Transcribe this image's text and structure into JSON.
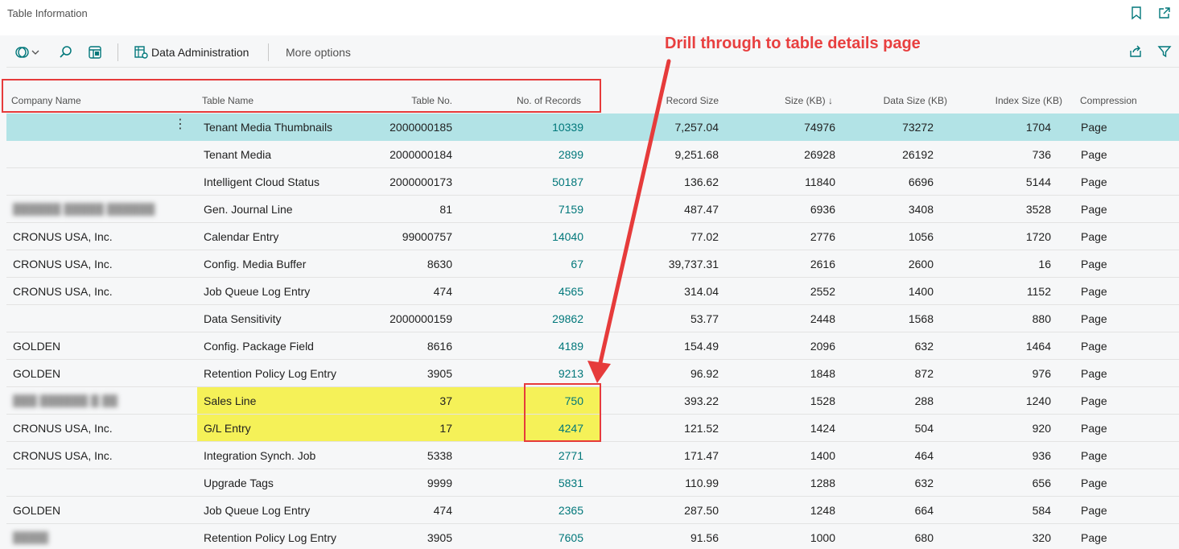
{
  "window": {
    "title": "Table Information"
  },
  "toolbar": {
    "data_admin_label": "Data Administration",
    "more_options_label": "More options"
  },
  "columns": {
    "company": "Company Name",
    "table_name": "Table Name",
    "table_no": "Table No.",
    "records": "No. of Records",
    "record_size": "Record Size",
    "size_kb": "Size (KB)",
    "sort_indicator": "↓",
    "data_size": "Data Size (KB)",
    "index_size": "Index Size (KB)",
    "compression": "Compression"
  },
  "rows": [
    {
      "company": "",
      "table_name": "Tenant Media Thumbnails",
      "table_no": "2000000185",
      "records": "10339",
      "record_size": "7,257.04",
      "size_kb": "74976",
      "data_size": "73272",
      "index_size": "1704",
      "compression": "Page"
    },
    {
      "company": "",
      "table_name": "Tenant Media",
      "table_no": "2000000184",
      "records": "2899",
      "record_size": "9,251.68",
      "size_kb": "26928",
      "data_size": "26192",
      "index_size": "736",
      "compression": "Page"
    },
    {
      "company": "",
      "table_name": "Intelligent Cloud Status",
      "table_no": "2000000173",
      "records": "50187",
      "record_size": "136.62",
      "size_kb": "11840",
      "data_size": "6696",
      "index_size": "5144",
      "compression": "Page"
    },
    {
      "company": "",
      "table_name": "Gen. Journal Line",
      "table_no": "81",
      "records": "7159",
      "record_size": "487.47",
      "size_kb": "6936",
      "data_size": "3408",
      "index_size": "3528",
      "compression": "Page"
    },
    {
      "company": "CRONUS USA, Inc.",
      "table_name": "Calendar Entry",
      "table_no": "99000757",
      "records": "14040",
      "record_size": "77.02",
      "size_kb": "2776",
      "data_size": "1056",
      "index_size": "1720",
      "compression": "Page"
    },
    {
      "company": "CRONUS USA, Inc.",
      "table_name": "Config. Media Buffer",
      "table_no": "8630",
      "records": "67",
      "record_size": "39,737.31",
      "size_kb": "2616",
      "data_size": "2600",
      "index_size": "16",
      "compression": "Page"
    },
    {
      "company": "CRONUS USA, Inc.",
      "table_name": "Job Queue Log Entry",
      "table_no": "474",
      "records": "4565",
      "record_size": "314.04",
      "size_kb": "2552",
      "data_size": "1400",
      "index_size": "1152",
      "compression": "Page"
    },
    {
      "company": "",
      "table_name": "Data Sensitivity",
      "table_no": "2000000159",
      "records": "29862",
      "record_size": "53.77",
      "size_kb": "2448",
      "data_size": "1568",
      "index_size": "880",
      "compression": "Page"
    },
    {
      "company": "GOLDEN",
      "table_name": "Config. Package Field",
      "table_no": "8616",
      "records": "4189",
      "record_size": "154.49",
      "size_kb": "2096",
      "data_size": "632",
      "index_size": "1464",
      "compression": "Page"
    },
    {
      "company": "GOLDEN",
      "table_name": "Retention Policy Log Entry",
      "table_no": "3905",
      "records": "9213",
      "record_size": "96.92",
      "size_kb": "1848",
      "data_size": "872",
      "index_size": "976",
      "compression": "Page"
    },
    {
      "company": "",
      "table_name": "Sales Line",
      "table_no": "37",
      "records": "750",
      "record_size": "393.22",
      "size_kb": "1528",
      "data_size": "288",
      "index_size": "1240",
      "compression": "Page"
    },
    {
      "company": "CRONUS USA, Inc.",
      "table_name": "G/L Entry",
      "table_no": "17",
      "records": "4247",
      "record_size": "121.52",
      "size_kb": "1424",
      "data_size": "504",
      "index_size": "920",
      "compression": "Page"
    },
    {
      "company": "CRONUS USA, Inc.",
      "table_name": "Integration Synch. Job",
      "table_no": "5338",
      "records": "2771",
      "record_size": "171.47",
      "size_kb": "1400",
      "data_size": "464",
      "index_size": "936",
      "compression": "Page"
    },
    {
      "company": "",
      "table_name": "Upgrade Tags",
      "table_no": "9999",
      "records": "5831",
      "record_size": "110.99",
      "size_kb": "1288",
      "data_size": "632",
      "index_size": "656",
      "compression": "Page"
    },
    {
      "company": "GOLDEN",
      "table_name": "Job Queue Log Entry",
      "table_no": "474",
      "records": "2365",
      "record_size": "287.50",
      "size_kb": "1248",
      "data_size": "664",
      "index_size": "584",
      "compression": "Page"
    },
    {
      "company": "",
      "table_name": "Retention Policy Log Entry",
      "table_no": "3905",
      "records": "7605",
      "record_size": "91.56",
      "size_kb": "1000",
      "data_size": "680",
      "index_size": "320",
      "compression": "Page"
    }
  ],
  "annotation": {
    "text": "Drill through to table details page"
  },
  "colors": {
    "accent": "#00777a",
    "selected_row": "#b2e3e6",
    "highlight": "#f5f03c",
    "annotation_red": "#e63b3b"
  }
}
